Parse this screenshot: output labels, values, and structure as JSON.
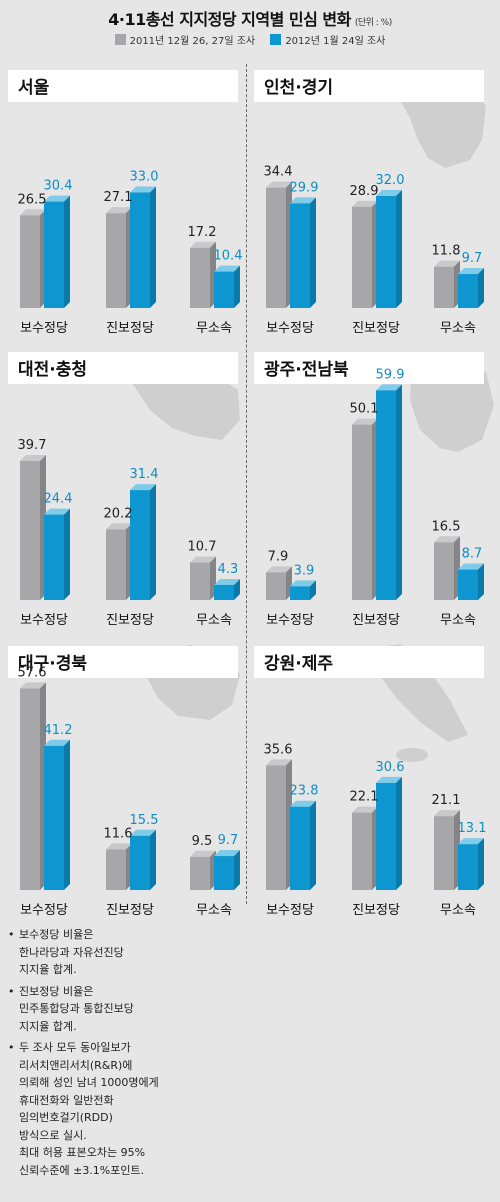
{
  "title": "4·11총선 지지정당 지역별 민심 변화",
  "unit": "(단위 : %)",
  "legend": [
    {
      "label": "2011년 12월 26, 27일 조사",
      "color": "#a7a7a9"
    },
    {
      "label": "2012년 1월 24일 조사",
      "color": "#0d96cf"
    }
  ],
  "chart_data": [
    {
      "type": "bar",
      "title": "서울",
      "categories": [
        "보수정당",
        "진보정당",
        "무소속"
      ],
      "series": [
        {
          "name": "2011년 12월 26, 27일 조사",
          "values": [
            26.5,
            27.1,
            17.2
          ]
        },
        {
          "name": "2012년 1월 24일 조사",
          "values": [
            30.4,
            33.0,
            10.4
          ]
        }
      ]
    },
    {
      "type": "bar",
      "title": "인천·경기",
      "categories": [
        "보수정당",
        "진보정당",
        "무소속"
      ],
      "series": [
        {
          "name": "2011년 12월 26, 27일 조사",
          "values": [
            34.4,
            28.9,
            11.8
          ]
        },
        {
          "name": "2012년 1월 24일 조사",
          "values": [
            29.9,
            32.0,
            9.7
          ]
        }
      ]
    },
    {
      "type": "bar",
      "title": "대전·충청",
      "categories": [
        "보수정당",
        "진보정당",
        "무소속"
      ],
      "series": [
        {
          "name": "2011년 12월 26, 27일 조사",
          "values": [
            39.7,
            20.2,
            10.7
          ]
        },
        {
          "name": "2012년 1월 24일 조사",
          "values": [
            24.4,
            31.4,
            4.3
          ]
        }
      ]
    },
    {
      "type": "bar",
      "title": "광주·전남북",
      "categories": [
        "보수정당",
        "진보정당",
        "무소속"
      ],
      "series": [
        {
          "name": "2011년 12월 26, 27일 조사",
          "values": [
            7.9,
            50.1,
            16.5
          ]
        },
        {
          "name": "2012년 1월 24일 조사",
          "values": [
            3.9,
            59.9,
            8.7
          ]
        }
      ]
    },
    {
      "type": "bar",
      "title": "대구·경북",
      "categories": [
        "보수정당",
        "진보정당",
        "무소속"
      ],
      "series": [
        {
          "name": "2011년 12월 26, 27일 조사",
          "values": [
            57.6,
            11.6,
            9.5
          ]
        },
        {
          "name": "2012년 1월 24일 조사",
          "values": [
            41.2,
            15.5,
            9.7
          ]
        }
      ]
    },
    {
      "type": "bar",
      "title": "강원·제주",
      "categories": [
        "보수정당",
        "진보정당",
        "무소속"
      ],
      "series": [
        {
          "name": "2011년 12월 26, 27일 조사",
          "values": [
            35.6,
            22.1,
            21.1
          ]
        },
        {
          "name": "2012년 1월 24일 조사",
          "values": [
            23.8,
            30.6,
            13.1
          ]
        }
      ]
    }
  ],
  "notes": [
    "보수정당 비율은\n한나라당과 자유선진당\n지지율 합계.",
    "진보정당 비율은\n민주통합당과 통합진보당\n지지율 합계.",
    "두 조사 모두 동아일보가\n리서치앤리서치(R&R)에\n의뢰해 성인 남녀 1000명에게\n휴대전화와 일반전화\n임의번호걸기(RDD)\n방식으로 실시.\n최대 허용 표본오차는 95%\n신뢰수준에 ±3.1%포인트."
  ]
}
